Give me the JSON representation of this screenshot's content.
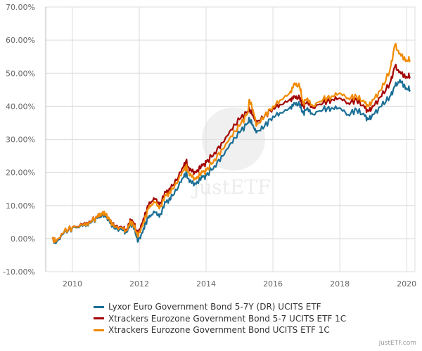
{
  "chart_data": {
    "type": "line",
    "title": "",
    "xlabel": "",
    "ylabel": "",
    "xlim": [
      2009.2,
      2020.25
    ],
    "ylim": [
      -10,
      70
    ],
    "grid": true,
    "legend_position": "bottom",
    "x_ticks": [
      2010,
      2012,
      2014,
      2016,
      2018,
      2020
    ],
    "x_tick_labels": [
      "2010",
      "2012",
      "2014",
      "2016",
      "2018",
      "2020"
    ],
    "y_ticks": [
      -10,
      0,
      10,
      20,
      30,
      40,
      50,
      60,
      70
    ],
    "y_tick_labels": [
      "-10.00%",
      "0.00%",
      "10.00%",
      "20.00%",
      "30.00%",
      "40.00%",
      "50.00%",
      "60.00%",
      "70.00%"
    ],
    "x": [
      2009.4,
      2009.5,
      2009.75,
      2010.0,
      2010.3,
      2010.5,
      2010.75,
      2010.9,
      2011.0,
      2011.1,
      2011.25,
      2011.5,
      2011.6,
      2011.75,
      2011.85,
      2011.95,
      2012.05,
      2012.2,
      2012.3,
      2012.5,
      2012.6,
      2012.8,
      2013.0,
      2013.25,
      2013.4,
      2013.5,
      2013.7,
      2013.9,
      2014.0,
      2014.25,
      2014.5,
      2014.75,
      2015.0,
      2015.25,
      2015.3,
      2015.45,
      2015.5,
      2015.75,
      2016.0,
      2016.25,
      2016.5,
      2016.65,
      2016.8,
      2016.9,
      2017.0,
      2017.2,
      2017.5,
      2017.75,
      2018.0,
      2018.25,
      2018.5,
      2018.75,
      2018.85,
      2019.0,
      2019.25,
      2019.5,
      2019.65,
      2019.8,
      2020.0,
      2020.1
    ],
    "series": [
      {
        "name": "Lyxor Euro Government Bond 5-7Y (DR) UCITS ETF",
        "color": "#1b6e95",
        "values": [
          0,
          -1.5,
          1.8,
          3.3,
          3.8,
          4.8,
          6.2,
          7.5,
          6.5,
          5.5,
          3,
          2.5,
          2,
          4.5,
          3.5,
          -1,
          1,
          5,
          7,
          8,
          6.5,
          11,
          13,
          17,
          20,
          17,
          16.5,
          18.5,
          19,
          22,
          25,
          29,
          32,
          35,
          36,
          33,
          32,
          34,
          37,
          38,
          39.5,
          41,
          40.5,
          38,
          39,
          37.5,
          39,
          39.5,
          39.5,
          37.5,
          39,
          37,
          36,
          37.5,
          40,
          43,
          46,
          48,
          45.5,
          45
        ]
      },
      {
        "name": "Xtrackers Eurozone Government Bond 5-7 UCITS ETF 1C",
        "color": "#a30000",
        "values": [
          0,
          -1,
          2,
          3.5,
          4.2,
          5.2,
          6.5,
          8,
          7,
          6,
          3.8,
          3.2,
          2.8,
          5.5,
          4.5,
          1,
          4,
          8,
          11,
          12,
          10,
          14,
          16,
          20,
          23.5,
          20.5,
          20,
          22,
          23,
          26,
          29,
          33,
          36,
          38.5,
          39,
          36,
          35,
          37,
          39.5,
          40.5,
          42,
          43,
          42.5,
          40,
          41,
          39.5,
          41,
          42,
          42.5,
          41,
          42,
          39.5,
          38.5,
          40,
          43,
          47,
          52,
          50.5,
          49,
          49
        ]
      },
      {
        "name": "Xtrackers Eurozone Government Bond UCITS ETF 1C",
        "color": "#f08a00",
        "values": [
          0,
          -1,
          2,
          3.5,
          4,
          5,
          6.5,
          8,
          7,
          6,
          3.5,
          3,
          2.5,
          5,
          4,
          0.5,
          3,
          7,
          10,
          11,
          9,
          13,
          15,
          19,
          22,
          19,
          18,
          20,
          20.5,
          24,
          27,
          31,
          34,
          38,
          42,
          37,
          34,
          37,
          40,
          42,
          44,
          47,
          46,
          41,
          42,
          40,
          42,
          43,
          44,
          42.5,
          43,
          41,
          40,
          42,
          45,
          51,
          58.5,
          56,
          54,
          54
        ]
      }
    ],
    "watermark": "justETF"
  },
  "legend": {
    "items": [
      {
        "label": "Lyxor Euro Government Bond 5-7Y (DR) UCITS ETF",
        "color": "#1b6e95"
      },
      {
        "label": "Xtrackers Eurozone Government Bond 5-7 UCITS ETF 1C",
        "color": "#a30000"
      },
      {
        "label": "Xtrackers Eurozone Government Bond UCITS ETF 1C",
        "color": "#f08a00"
      }
    ]
  },
  "credit": "justETF.com"
}
